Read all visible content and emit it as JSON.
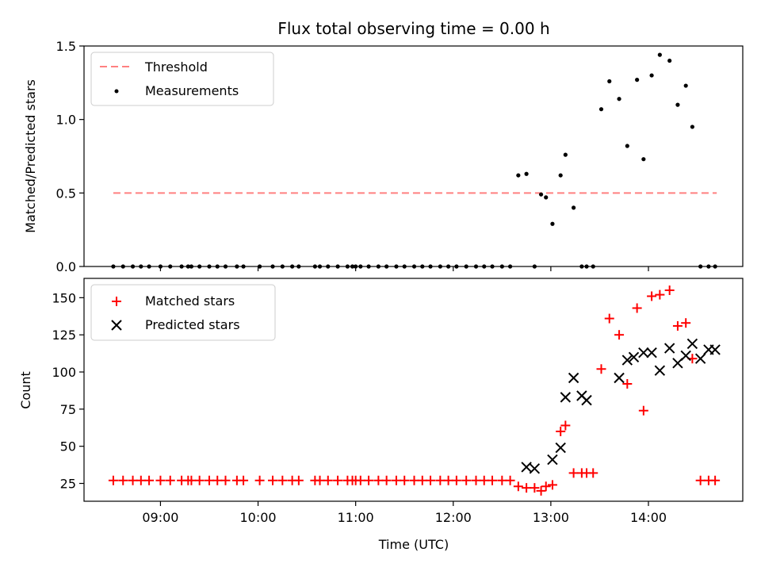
{
  "chart_data": [
    {
      "type": "scatter",
      "title": "Flux total observing time = 0.00 h",
      "xlabel": "",
      "ylabel": "Matched/Predicted stars",
      "ylim": [
        0,
        1.5
      ],
      "yticks": [
        0.0,
        0.5,
        1.0,
        1.5
      ],
      "ytick_labels": [
        "0.0",
        "0.5",
        "1.0",
        "1.5"
      ],
      "legend": {
        "placement": "upper-left",
        "entries": [
          "Threshold",
          "Measurements"
        ]
      },
      "threshold": {
        "name": "Threshold",
        "y": 0.5,
        "x_start": "08:31",
        "x_end": "14:42",
        "color": "#ff8080",
        "style": "dashed"
      },
      "measurements": {
        "name": "Measurements",
        "color": "#000000",
        "x": [
          "08:31",
          "08:37",
          "08:43",
          "08:48",
          "08:53",
          "09:00",
          "09:06",
          "09:13",
          "09:17",
          "09:19",
          "09:24",
          "09:30",
          "09:35",
          "09:40",
          "09:47",
          "09:51",
          "10:01",
          "10:09",
          "10:15",
          "10:21",
          "10:25",
          "10:35",
          "10:38",
          "10:43",
          "10:49",
          "10:55",
          "10:58",
          "11:00",
          "11:03",
          "11:08",
          "11:14",
          "11:19",
          "11:25",
          "11:30",
          "11:36",
          "11:41",
          "11:46",
          "11:52",
          "11:57",
          "12:02",
          "12:08",
          "12:14",
          "12:19",
          "12:24",
          "12:30",
          "12:35",
          "12:40",
          "12:45",
          "12:50",
          "12:54",
          "12:57",
          "13:01",
          "13:06",
          "13:09",
          "13:14",
          "13:19",
          "13:22",
          "13:26",
          "13:31",
          "13:36",
          "13:42",
          "13:47",
          "13:53",
          "13:57",
          "14:02",
          "14:07",
          "14:13",
          "14:18",
          "14:23",
          "14:27",
          "14:32",
          "14:37",
          "14:41"
        ],
        "y": [
          0,
          0,
          0,
          0,
          0,
          0,
          0,
          0,
          0,
          0,
          0,
          0,
          0,
          0,
          0,
          0,
          0,
          0,
          0,
          0,
          0,
          0,
          0,
          0,
          0,
          0,
          0,
          0,
          0,
          0,
          0,
          0,
          0,
          0,
          0,
          0,
          0,
          0,
          0,
          0,
          0,
          0,
          0,
          0,
          0,
          0,
          0.62,
          0.63,
          0,
          0.49,
          0.47,
          0.29,
          0.62,
          0.76,
          0.4,
          0,
          0,
          0,
          1.07,
          1.26,
          1.14,
          0.82,
          1.27,
          0.73,
          1.3,
          1.44,
          1.4,
          1.1,
          1.23,
          0.95,
          0,
          0,
          0
        ]
      }
    },
    {
      "type": "scatter",
      "title": "",
      "xlabel": "Time (UTC)",
      "ylabel": "Count",
      "ylim": [
        13,
        163
      ],
      "yticks": [
        25,
        50,
        75,
        100,
        125,
        150
      ],
      "ytick_labels": [
        "25",
        "50",
        "75",
        "100",
        "125",
        "150"
      ],
      "xlim": [
        "08:13",
        "14:58"
      ],
      "xticks": [
        "09:00",
        "10:00",
        "11:00",
        "12:00",
        "13:00",
        "14:00"
      ],
      "legend": {
        "placement": "upper-left",
        "entries": [
          "Matched stars",
          "Predicted stars"
        ]
      },
      "series": [
        {
          "name": "Matched stars",
          "marker": "plus",
          "color": "#ff0000",
          "x": [
            "08:31",
            "08:37",
            "08:43",
            "08:48",
            "08:53",
            "09:00",
            "09:06",
            "09:13",
            "09:17",
            "09:19",
            "09:24",
            "09:30",
            "09:35",
            "09:40",
            "09:47",
            "09:51",
            "10:01",
            "10:09",
            "10:15",
            "10:21",
            "10:25",
            "10:35",
            "10:38",
            "10:43",
            "10:49",
            "10:55",
            "10:58",
            "11:00",
            "11:03",
            "11:08",
            "11:14",
            "11:19",
            "11:25",
            "11:30",
            "11:36",
            "11:41",
            "11:46",
            "11:52",
            "11:57",
            "12:02",
            "12:08",
            "12:14",
            "12:19",
            "12:24",
            "12:30",
            "12:35",
            "12:40",
            "12:45",
            "12:50",
            "12:54",
            "12:57",
            "13:01",
            "13:06",
            "13:09",
            "13:14",
            "13:19",
            "13:22",
            "13:26",
            "13:31",
            "13:36",
            "13:42",
            "13:47",
            "13:53",
            "13:57",
            "14:02",
            "14:07",
            "14:13",
            "14:18",
            "14:23",
            "14:27",
            "14:32",
            "14:37",
            "14:41"
          ],
          "y": [
            27,
            27,
            27,
            27,
            27,
            27,
            27,
            27,
            27,
            27,
            27,
            27,
            27,
            27,
            27,
            27,
            27,
            27,
            27,
            27,
            27,
            27,
            27,
            27,
            27,
            27,
            27,
            27,
            27,
            27,
            27,
            27,
            27,
            27,
            27,
            27,
            27,
            27,
            27,
            27,
            27,
            27,
            27,
            27,
            27,
            27,
            23,
            22,
            22,
            20,
            23,
            24,
            60,
            64,
            32,
            32,
            32,
            32,
            102,
            136,
            125,
            92,
            143,
            74,
            151,
            152,
            155,
            131,
            133,
            109,
            27,
            27,
            27
          ]
        },
        {
          "name": "Predicted stars",
          "marker": "x",
          "color": "#000000",
          "x": [
            "12:45",
            "12:50",
            "13:01",
            "13:06",
            "13:09",
            "13:14",
            "13:19",
            "13:22",
            "13:42",
            "13:47",
            "13:51",
            "13:57",
            "14:02",
            "14:07",
            "14:13",
            "14:18",
            "14:23",
            "14:27",
            "14:32",
            "14:37",
            "14:41"
          ],
          "y": [
            36,
            35,
            41,
            49,
            83,
            96,
            84,
            81,
            96,
            108,
            110,
            113,
            113,
            101,
            116,
            106,
            111,
            119,
            109,
            115,
            115
          ]
        }
      ]
    }
  ]
}
